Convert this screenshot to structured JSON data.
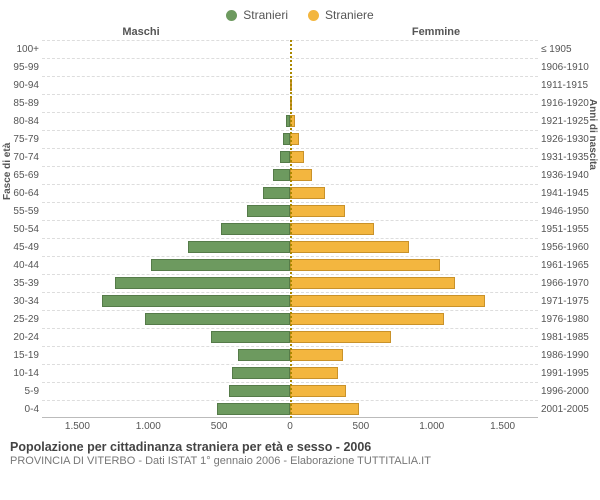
{
  "type": "population-pyramid",
  "legend": {
    "male": {
      "label": "Stranieri",
      "color": "#6d9a5f",
      "border": "#557b49"
    },
    "female": {
      "label": "Straniere",
      "color": "#f3b63f",
      "border": "#c9922a"
    }
  },
  "headers": {
    "left": "Maschi",
    "right": "Femmine"
  },
  "axis_titles": {
    "left": "Fasce di età",
    "right": "Anni di nascita"
  },
  "x_max": 1500,
  "x_ticks_left": [
    "1.500",
    "1.000",
    "500"
  ],
  "x_ticks_center": "0",
  "x_ticks_right": [
    "500",
    "1.000",
    "1.500"
  ],
  "grid_color": "#dddddd",
  "center_line_color": "#aa8800",
  "rows": [
    {
      "age": "100+",
      "birth": "≤ 1905",
      "m": 0,
      "f": 0
    },
    {
      "age": "95-99",
      "birth": "1906-1910",
      "m": 0,
      "f": 0
    },
    {
      "age": "90-94",
      "birth": "1911-1915",
      "m": 0,
      "f": 3
    },
    {
      "age": "85-89",
      "birth": "1916-1920",
      "m": 0,
      "f": 5
    },
    {
      "age": "80-84",
      "birth": "1921-1925",
      "m": 25,
      "f": 30
    },
    {
      "age": "75-79",
      "birth": "1926-1930",
      "m": 40,
      "f": 55
    },
    {
      "age": "70-74",
      "birth": "1931-1935",
      "m": 60,
      "f": 85
    },
    {
      "age": "65-69",
      "birth": "1936-1940",
      "m": 105,
      "f": 135
    },
    {
      "age": "60-64",
      "birth": "1941-1945",
      "m": 165,
      "f": 210
    },
    {
      "age": "55-59",
      "birth": "1946-1950",
      "m": 260,
      "f": 330
    },
    {
      "age": "50-54",
      "birth": "1951-1955",
      "m": 420,
      "f": 510
    },
    {
      "age": "45-49",
      "birth": "1956-1960",
      "m": 620,
      "f": 720
    },
    {
      "age": "40-44",
      "birth": "1961-1965",
      "m": 840,
      "f": 910
    },
    {
      "age": "35-39",
      "birth": "1966-1970",
      "m": 1060,
      "f": 1000
    },
    {
      "age": "30-34",
      "birth": "1971-1975",
      "m": 1140,
      "f": 1180
    },
    {
      "age": "25-29",
      "birth": "1976-1980",
      "m": 880,
      "f": 930
    },
    {
      "age": "20-24",
      "birth": "1981-1985",
      "m": 480,
      "f": 610
    },
    {
      "age": "15-19",
      "birth": "1986-1990",
      "m": 315,
      "f": 320
    },
    {
      "age": "10-14",
      "birth": "1991-1995",
      "m": 350,
      "f": 290
    },
    {
      "age": "5-9",
      "birth": "1996-2000",
      "m": 370,
      "f": 340
    },
    {
      "age": "0-4",
      "birth": "2001-2005",
      "m": 440,
      "f": 420
    }
  ],
  "footer": {
    "title": "Popolazione per cittadinanza straniera per età e sesso - 2006",
    "subtitle": "PROVINCIA DI VITERBO - Dati ISTAT 1° gennaio 2006 - Elaborazione TUTTITALIA.IT"
  }
}
